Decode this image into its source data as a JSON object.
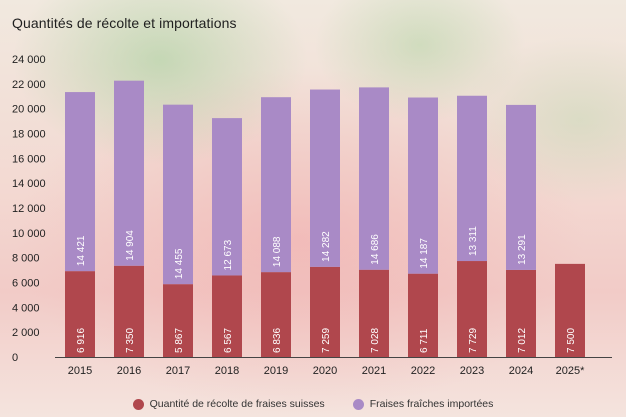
{
  "colors": {
    "swiss": "#b0474d",
    "imported": "#a98ac6",
    "baseline": "#444444"
  },
  "chart_data": {
    "type": "bar",
    "stacked": true,
    "title": "Quantités de récolte et importations",
    "xlabel": "",
    "ylabel": "",
    "ylim": [
      0,
      24000
    ],
    "y_ticks": [
      0,
      2000,
      4000,
      6000,
      8000,
      10000,
      12000,
      14000,
      16000,
      18000,
      20000,
      22000,
      24000
    ],
    "y_tick_labels": [
      "0",
      "2 000",
      "4 000",
      "6 000",
      "8 000",
      "10 000",
      "12 000",
      "14 000",
      "16 000",
      "18 000",
      "20 000",
      "22 000",
      "24 000"
    ],
    "categories": [
      "2015",
      "2016",
      "2017",
      "2018",
      "2019",
      "2020",
      "2021",
      "2022",
      "2023",
      "2024",
      "2025*"
    ],
    "series": [
      {
        "name": "Quantité de récolte de fraises suisses",
        "values": [
          6916,
          7350,
          5867,
          6567,
          6836,
          7259,
          7028,
          6711,
          7729,
          7012,
          7500
        ],
        "labels": [
          "6 916",
          "7 350",
          "5 867",
          "6 567",
          "6 836",
          "7 259",
          "7 028",
          "6 711",
          "7 729",
          "7 012",
          "7 500"
        ]
      },
      {
        "name": "Fraises fraîches importées",
        "values": [
          14421,
          14904,
          14455,
          12673,
          14088,
          14282,
          14686,
          14187,
          13311,
          13291,
          null
        ],
        "labels": [
          "14 421",
          "14 904",
          "14 455",
          "12 673",
          "14 088",
          "14 282",
          "14 686",
          "14 187",
          "13 311",
          "13 291",
          ""
        ]
      }
    ],
    "grid": false,
    "legend_position": "bottom"
  }
}
